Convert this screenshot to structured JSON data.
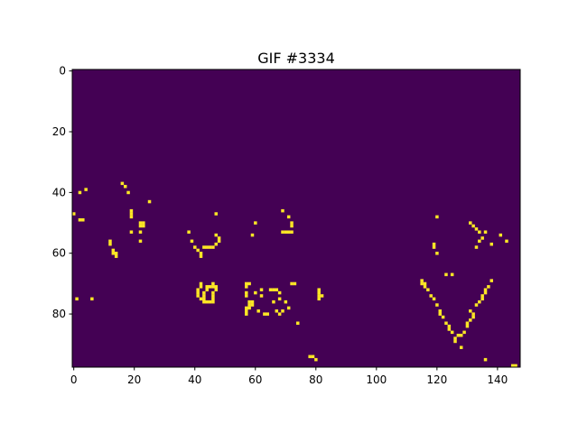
{
  "chart_data": {
    "type": "heatmap",
    "title": "GIF #3334",
    "colormap": "viridis",
    "colors": {
      "background": "#440154",
      "foreground": "#fde725",
      "axes": "#000000"
    },
    "shape": {
      "rows": 98,
      "cols": 148
    },
    "xlim": [
      -0.5,
      147.5
    ],
    "ylim": [
      97.5,
      -0.5
    ],
    "xticks": [
      0,
      20,
      40,
      60,
      80,
      100,
      120,
      140
    ],
    "yticks": [
      0,
      20,
      40,
      60,
      80
    ],
    "grid": false,
    "active_pixels": [
      [
        0,
        47
      ],
      [
        1,
        75
      ],
      [
        2,
        40
      ],
      [
        2,
        49
      ],
      [
        3,
        49
      ],
      [
        4,
        39
      ],
      [
        6,
        75
      ],
      [
        12,
        56
      ],
      [
        12,
        57
      ],
      [
        13,
        59
      ],
      [
        13,
        60
      ],
      [
        14,
        60
      ],
      [
        14,
        61
      ],
      [
        16,
        37
      ],
      [
        17,
        38
      ],
      [
        18,
        40
      ],
      [
        19,
        46
      ],
      [
        19,
        47
      ],
      [
        19,
        48
      ],
      [
        19,
        53
      ],
      [
        22,
        50
      ],
      [
        22,
        51
      ],
      [
        22,
        53
      ],
      [
        23,
        50
      ],
      [
        23,
        51
      ],
      [
        22,
        56
      ],
      [
        25,
        43
      ],
      [
        38,
        53
      ],
      [
        39,
        56
      ],
      [
        40,
        58
      ],
      [
        41,
        59
      ],
      [
        42,
        60
      ],
      [
        42,
        61
      ],
      [
        43,
        58
      ],
      [
        44,
        58
      ],
      [
        45,
        58
      ],
      [
        46,
        58
      ],
      [
        47,
        47
      ],
      [
        47,
        54
      ],
      [
        47,
        57
      ],
      [
        48,
        55
      ],
      [
        48,
        56
      ],
      [
        41,
        72
      ],
      [
        41,
        73
      ],
      [
        41,
        74
      ],
      [
        42,
        70
      ],
      [
        42,
        71
      ],
      [
        42,
        75
      ],
      [
        43,
        73
      ],
      [
        43,
        74
      ],
      [
        43,
        75
      ],
      [
        43,
        76
      ],
      [
        44,
        71
      ],
      [
        44,
        72
      ],
      [
        44,
        76
      ],
      [
        45,
        71
      ],
      [
        45,
        76
      ],
      [
        46,
        70
      ],
      [
        46,
        71
      ],
      [
        46,
        73
      ],
      [
        46,
        74
      ],
      [
        46,
        75
      ],
      [
        46,
        76
      ],
      [
        47,
        71
      ],
      [
        47,
        72
      ],
      [
        57,
        70
      ],
      [
        57,
        71
      ],
      [
        57,
        73
      ],
      [
        57,
        74
      ],
      [
        57,
        78
      ],
      [
        57,
        79
      ],
      [
        57,
        80
      ],
      [
        58,
        70
      ],
      [
        58,
        76
      ],
      [
        58,
        77
      ],
      [
        58,
        78
      ],
      [
        59,
        76
      ],
      [
        59,
        77
      ],
      [
        59,
        54
      ],
      [
        60,
        50
      ],
      [
        60,
        73
      ],
      [
        61,
        79
      ],
      [
        62,
        72
      ],
      [
        62,
        74
      ],
      [
        63,
        80
      ],
      [
        64,
        80
      ],
      [
        65,
        72
      ],
      [
        66,
        72
      ],
      [
        66,
        76
      ],
      [
        67,
        72
      ],
      [
        67,
        79
      ],
      [
        68,
        73
      ],
      [
        68,
        75
      ],
      [
        68,
        80
      ],
      [
        69,
        46
      ],
      [
        69,
        53
      ],
      [
        69,
        79
      ],
      [
        70,
        53
      ],
      [
        70,
        76
      ],
      [
        71,
        48
      ],
      [
        71,
        53
      ],
      [
        71,
        78
      ],
      [
        72,
        50
      ],
      [
        72,
        51
      ],
      [
        72,
        53
      ],
      [
        72,
        70
      ],
      [
        73,
        70
      ],
      [
        74,
        83
      ],
      [
        78,
        94
      ],
      [
        79,
        94
      ],
      [
        80,
        95
      ],
      [
        81,
        72
      ],
      [
        81,
        73
      ],
      [
        81,
        74
      ],
      [
        81,
        75
      ],
      [
        82,
        74
      ],
      [
        115,
        69
      ],
      [
        115,
        70
      ],
      [
        116,
        70
      ],
      [
        116,
        71
      ],
      [
        117,
        72
      ],
      [
        118,
        74
      ],
      [
        119,
        75
      ],
      [
        120,
        77
      ],
      [
        120,
        48
      ],
      [
        121,
        79
      ],
      [
        121,
        80
      ],
      [
        122,
        81
      ],
      [
        123,
        83
      ],
      [
        124,
        84
      ],
      [
        124,
        85
      ],
      [
        125,
        86
      ],
      [
        126,
        88
      ],
      [
        126,
        89
      ],
      [
        127,
        87
      ],
      [
        128,
        87
      ],
      [
        128,
        91
      ],
      [
        129,
        86
      ],
      [
        130,
        83
      ],
      [
        130,
        84
      ],
      [
        131,
        82
      ],
      [
        131,
        79
      ],
      [
        132,
        80
      ],
      [
        132,
        81
      ],
      [
        133,
        77
      ],
      [
        134,
        76
      ],
      [
        135,
        75
      ],
      [
        135,
        74
      ],
      [
        136,
        73
      ],
      [
        136,
        72
      ],
      [
        137,
        71
      ],
      [
        138,
        69
      ],
      [
        119,
        57
      ],
      [
        119,
        58
      ],
      [
        120,
        60
      ],
      [
        123,
        67
      ],
      [
        125,
        67
      ],
      [
        131,
        50
      ],
      [
        132,
        51
      ],
      [
        133,
        52
      ],
      [
        133,
        58
      ],
      [
        134,
        53
      ],
      [
        134,
        56
      ],
      [
        135,
        55
      ],
      [
        136,
        53
      ],
      [
        136,
        95
      ],
      [
        138,
        57
      ],
      [
        141,
        54
      ],
      [
        143,
        56
      ],
      [
        145,
        97
      ],
      [
        146,
        97
      ]
    ]
  }
}
